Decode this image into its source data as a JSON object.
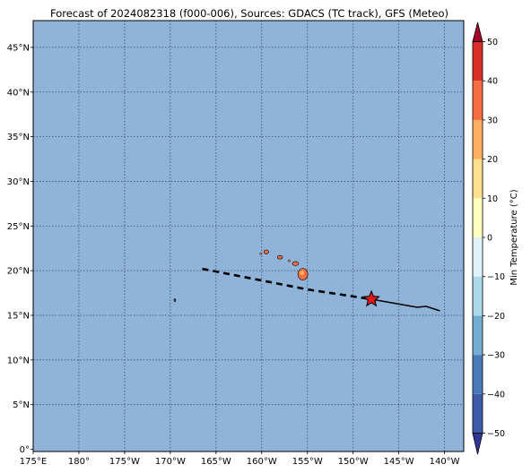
{
  "title": "Forecast of 2024082318 (f000-006), Sources: GDACS (TC track), GFS (Meteo)",
  "map": {
    "ocean_color": "#8fb3d9",
    "grid_color": "#3c4c6e",
    "lon_ticks": [
      "175°E",
      "180°",
      "175°W",
      "170°W",
      "165°W",
      "160°W",
      "155°W",
      "150°W",
      "145°W",
      "140°W"
    ],
    "lat_ticks": [
      "0°",
      "5°N",
      "10°N",
      "15°N",
      "20°N",
      "25°N",
      "30°N",
      "35°N",
      "40°N",
      "45°N"
    ],
    "islands": [
      {
        "name": "Big Island",
        "lon": -155.5,
        "lat": 19.6
      },
      {
        "name": "Maui",
        "lon": -156.3,
        "lat": 20.8
      },
      {
        "name": "Oahu",
        "lon": -158.0,
        "lat": 21.5
      },
      {
        "name": "Kauai",
        "lon": -159.5,
        "lat": 22.1
      },
      {
        "name": "Johnston Atoll",
        "lon": -169.5,
        "lat": 16.7
      }
    ],
    "forecast_track": [
      [
        -166.5,
        20.2
      ],
      [
        -160,
        18.9
      ],
      [
        -155,
        17.9
      ],
      [
        -148,
        16.8
      ]
    ],
    "past_track": [
      [
        -148,
        16.8
      ],
      [
        -143,
        15.9
      ],
      [
        -142,
        16.0
      ],
      [
        -140.5,
        15.5
      ]
    ],
    "storm_position": {
      "lon": -148,
      "lat": 16.8,
      "color": "#e31a1c"
    }
  },
  "colorbar": {
    "label": "Min Temperature (°C)",
    "ticks": [
      "50",
      "40",
      "30",
      "20",
      "10",
      "0",
      "−10",
      "−20",
      "−30",
      "−40",
      "−50"
    ],
    "colors": [
      "#313695",
      "#3d5ba8",
      "#4a7ab8",
      "#74add1",
      "#abd9e9",
      "#e0f3f8",
      "#ffffbf",
      "#fee090",
      "#fdae61",
      "#f46d43",
      "#d73027",
      "#a50026"
    ]
  }
}
